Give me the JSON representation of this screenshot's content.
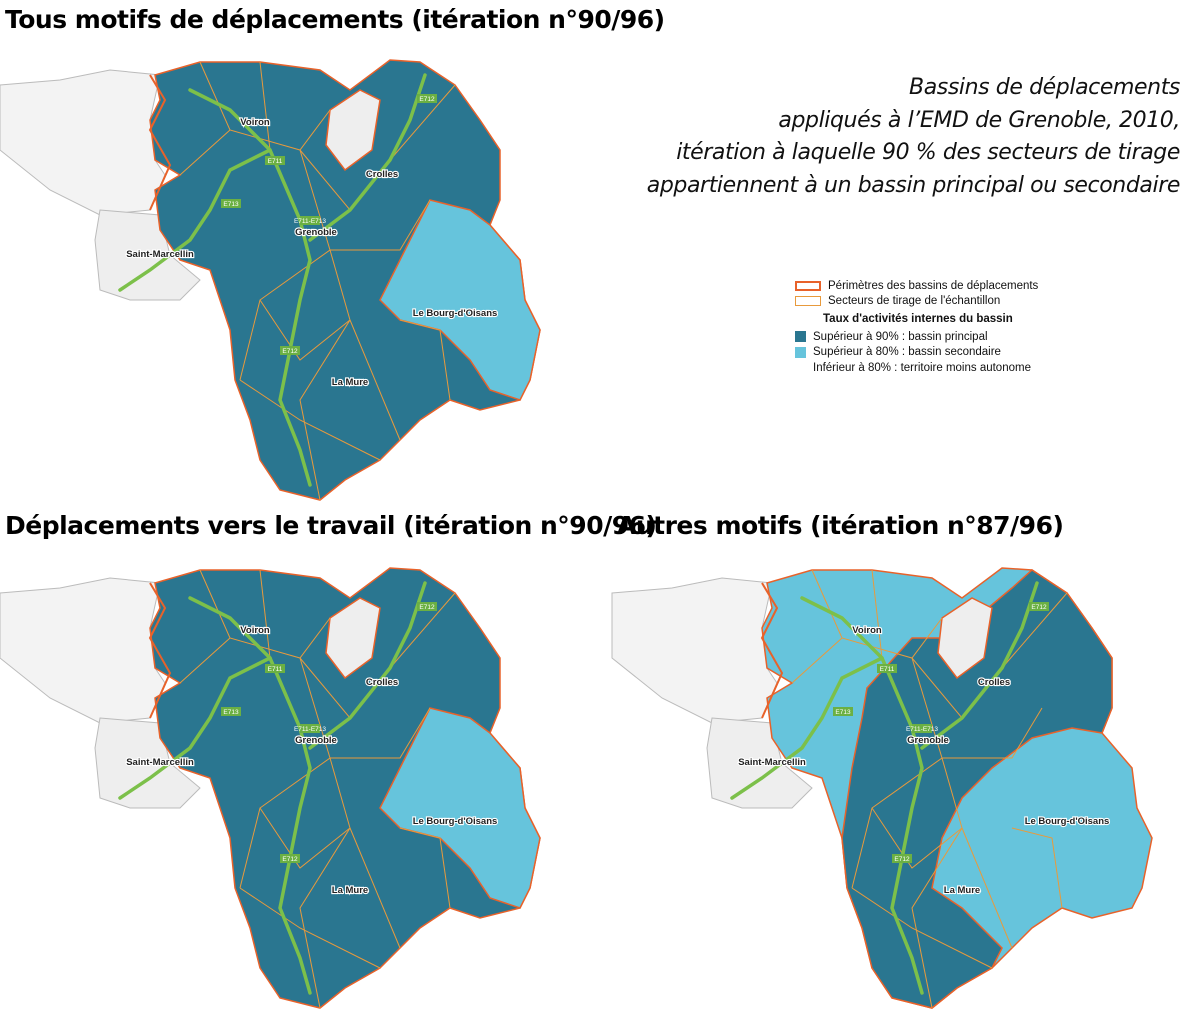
{
  "maps": [
    {
      "title": "Tous motifs de déplacements (itération n°90/96)",
      "variant": "main"
    },
    {
      "title": "Déplacements vers le travail (itération n°90/96)",
      "variant": "main"
    },
    {
      "title": "Autres motifs (itération n°87/96)",
      "variant": "other"
    }
  ],
  "subtitle": {
    "lines": [
      "Bassins de déplacements",
      "appliqués à l’EMD de Grenoble, 2010,",
      "itération à laquelle 90 % des secteurs de tirage",
      "appartiennent à un bassin principal ou secondaire"
    ]
  },
  "legend": {
    "perimeter": "Périmètres des bassins de déplacements",
    "sectors": "Secteurs de tirage de l'échantillon",
    "heading": "Taux d'activités internes du bassin",
    "principal": "Supérieur à 90% : bassin principal",
    "secondary": "Supérieur à 80% : bassin secondaire",
    "other": "Inférieur à 80% : territoire moins autonome"
  },
  "places": [
    "Voiron",
    "Crolles",
    "Grenoble",
    "Saint-Marcellin",
    "Le Bourg-d'Oisans",
    "La Mure"
  ],
  "roads": [
    "E711",
    "E713",
    "E712",
    "E711-E713"
  ],
  "colors": {
    "principal": "#2a7690",
    "secondary": "#66c4dc",
    "outside": "#f2f2f2",
    "perimeter": "#e8622a",
    "sectors": "#e89a3c",
    "road": "#7cc04a"
  }
}
